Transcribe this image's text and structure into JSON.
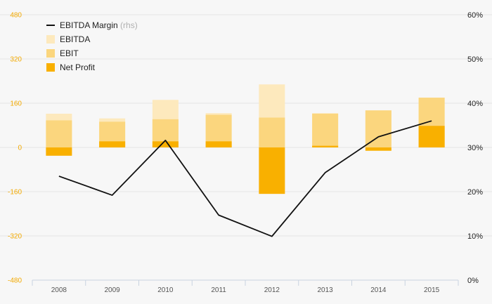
{
  "chart_data": {
    "type": "bar",
    "categories": [
      "2008",
      "2009",
      "2010",
      "2011",
      "2012",
      "2013",
      "2014",
      "2015"
    ],
    "series": [
      {
        "name": "EBITDA",
        "kind": "bar",
        "axis": "left",
        "values": [
          122,
          105,
          172,
          124,
          228,
          124,
          134,
          180
        ]
      },
      {
        "name": "EBIT",
        "kind": "bar",
        "axis": "left",
        "values": [
          98,
          93,
          102,
          118,
          108,
          122,
          134,
          180
        ]
      },
      {
        "name": "Net Profit",
        "kind": "bar",
        "axis": "left",
        "values": [
          -30,
          22,
          22,
          22,
          -168,
          6,
          -12,
          78
        ]
      },
      {
        "name": "EBITDA Margin",
        "kind": "line",
        "axis": "right",
        "values": [
          23.5,
          19.2,
          31.6,
          14.7,
          9.9,
          24.3,
          32.4,
          36.0
        ]
      }
    ],
    "legend": [
      {
        "label": "EBITDA Margin",
        "suffix": "(rhs)",
        "kind": "line"
      },
      {
        "label": "EBITDA",
        "kind": "box"
      },
      {
        "label": "EBIT",
        "kind": "box"
      },
      {
        "label": "Net Profit",
        "kind": "box"
      }
    ],
    "y_left": {
      "ticks": [
        480,
        320,
        160,
        0,
        -160,
        -320,
        -480
      ],
      "ylim": [
        -480,
        480
      ]
    },
    "y_right": {
      "ticks": [
        "60%",
        "50%",
        "40%",
        "30%",
        "20%",
        "10%",
        "0%"
      ],
      "ylim": [
        0,
        60
      ]
    },
    "legend_position": "top-left",
    "colors": {
      "ebitda": "#fde9bd",
      "ebit": "#fbd67e",
      "net_profit": "#f9b000",
      "margin_line": "#111111",
      "left_axis_text": "#f2a900",
      "grid": "#e6e6e6"
    }
  }
}
